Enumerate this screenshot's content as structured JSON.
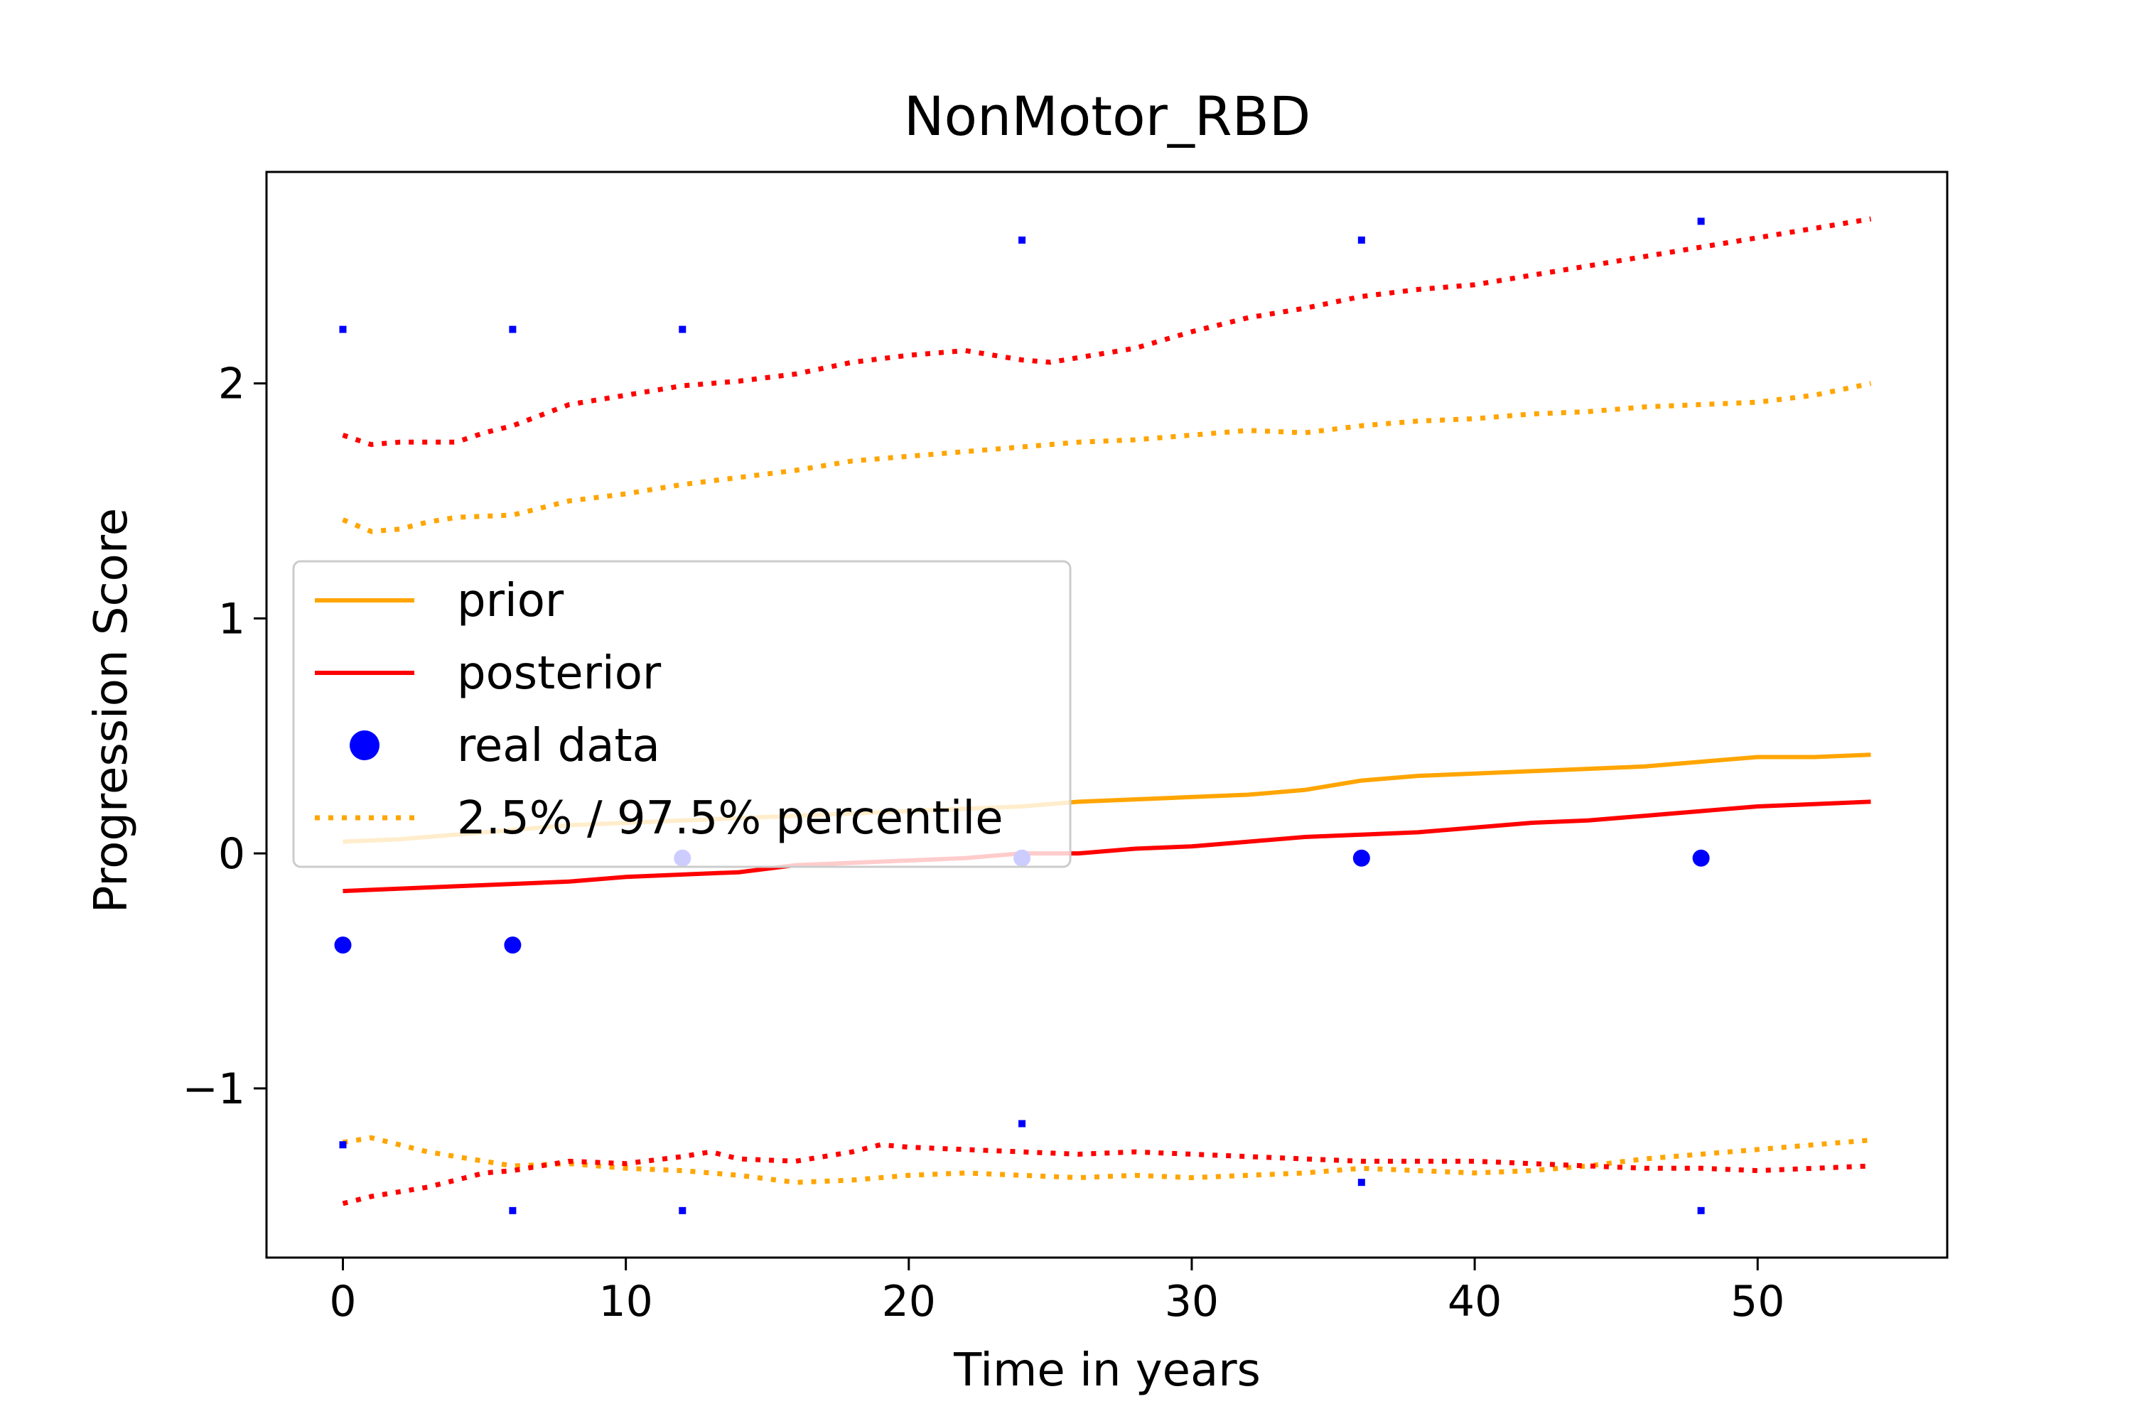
{
  "chart_data": {
    "type": "line",
    "title": "NonMotor_RBD",
    "xlabel": "Time in years",
    "ylabel": "Progression Score",
    "xlim": [
      -2.7,
      56.7
    ],
    "ylim": [
      -1.72,
      2.9
    ],
    "xticks": [
      0,
      10,
      20,
      30,
      40,
      50
    ],
    "yticks": [
      -1,
      0,
      1,
      2
    ],
    "xtick_labels": [
      "0",
      "10",
      "20",
      "30",
      "40",
      "50"
    ],
    "ytick_labels": [
      "−1",
      "0",
      "1",
      "2"
    ],
    "grid": false,
    "legend_placement": "center-left",
    "legend": [
      {
        "label": "prior",
        "kind": "line",
        "color": "#ffa500"
      },
      {
        "label": "posterior",
        "kind": "line",
        "color": "#ff0000"
      },
      {
        "label": "real data",
        "kind": "marker",
        "color": "#0000ff"
      },
      {
        "label": "2.5% / 97.5% percentile",
        "kind": "dotted",
        "color": "#ffa500"
      }
    ],
    "series": [
      {
        "name": "prior",
        "role": "mean",
        "color": "#ffa500",
        "style": "solid",
        "x": [
          0,
          2,
          4,
          6,
          8,
          10,
          12,
          14,
          16,
          18,
          20,
          22,
          24,
          26,
          28,
          30,
          32,
          34,
          36,
          38,
          40,
          42,
          44,
          46,
          48,
          50,
          52,
          54
        ],
        "y": [
          0.05,
          0.06,
          0.08,
          0.1,
          0.12,
          0.13,
          0.14,
          0.15,
          0.16,
          0.17,
          0.18,
          0.19,
          0.2,
          0.22,
          0.23,
          0.24,
          0.25,
          0.27,
          0.31,
          0.33,
          0.34,
          0.35,
          0.36,
          0.37,
          0.39,
          0.41,
          0.41,
          0.42
        ]
      },
      {
        "name": "posterior",
        "role": "mean",
        "color": "#ff0000",
        "style": "solid",
        "x": [
          0,
          2,
          4,
          6,
          8,
          10,
          12,
          14,
          16,
          18,
          20,
          22,
          24,
          26,
          28,
          30,
          32,
          34,
          36,
          38,
          40,
          42,
          44,
          46,
          48,
          50,
          52,
          54
        ],
        "y": [
          -0.16,
          -0.15,
          -0.14,
          -0.13,
          -0.12,
          -0.1,
          -0.09,
          -0.08,
          -0.05,
          -0.04,
          -0.03,
          -0.02,
          0.0,
          0.0,
          0.02,
          0.03,
          0.05,
          0.07,
          0.08,
          0.09,
          0.11,
          0.13,
          0.14,
          0.16,
          0.18,
          0.2,
          0.21,
          0.22
        ]
      },
      {
        "name": "prior 97.5%",
        "role": "upper",
        "color": "#ffa500",
        "style": "dotted",
        "x": [
          0,
          1,
          2,
          3,
          4,
          6,
          8,
          10,
          12,
          14,
          16,
          18,
          20,
          22,
          24,
          26,
          28,
          30,
          32,
          34,
          36,
          38,
          40,
          42,
          44,
          46,
          48,
          50,
          52,
          54
        ],
        "y": [
          1.42,
          1.37,
          1.38,
          1.41,
          1.43,
          1.44,
          1.5,
          1.53,
          1.57,
          1.6,
          1.63,
          1.67,
          1.69,
          1.71,
          1.73,
          1.75,
          1.76,
          1.78,
          1.8,
          1.79,
          1.82,
          1.84,
          1.85,
          1.87,
          1.88,
          1.9,
          1.91,
          1.92,
          1.95,
          2.0
        ]
      },
      {
        "name": "posterior 97.5%",
        "role": "upper",
        "color": "#ff0000",
        "style": "dotted",
        "x": [
          0,
          1,
          2,
          3,
          4,
          5,
          6,
          8,
          10,
          12,
          14,
          16,
          18,
          20,
          22,
          24,
          25,
          26,
          28,
          30,
          32,
          34,
          36,
          38,
          40,
          42,
          44,
          46,
          48,
          50,
          52,
          54
        ],
        "y": [
          1.78,
          1.74,
          1.75,
          1.75,
          1.75,
          1.79,
          1.82,
          1.91,
          1.95,
          1.99,
          2.01,
          2.04,
          2.09,
          2.12,
          2.14,
          2.1,
          2.09,
          2.11,
          2.15,
          2.22,
          2.28,
          2.32,
          2.37,
          2.4,
          2.42,
          2.46,
          2.5,
          2.54,
          2.58,
          2.62,
          2.66,
          2.7
        ]
      },
      {
        "name": "prior 2.5%",
        "role": "lower",
        "color": "#ffa500",
        "style": "dotted",
        "x": [
          0,
          1,
          2,
          3,
          4,
          6,
          8,
          10,
          12,
          14,
          16,
          18,
          20,
          22,
          24,
          26,
          28,
          30,
          32,
          34,
          36,
          38,
          40,
          42,
          44,
          46,
          48,
          50,
          52,
          54
        ],
        "y": [
          -1.23,
          -1.21,
          -1.24,
          -1.27,
          -1.29,
          -1.33,
          -1.32,
          -1.34,
          -1.35,
          -1.37,
          -1.4,
          -1.39,
          -1.37,
          -1.36,
          -1.37,
          -1.38,
          -1.37,
          -1.38,
          -1.37,
          -1.36,
          -1.34,
          -1.35,
          -1.36,
          -1.35,
          -1.33,
          -1.3,
          -1.28,
          -1.26,
          -1.24,
          -1.22
        ]
      },
      {
        "name": "posterior 2.5%",
        "role": "lower",
        "color": "#ff0000",
        "style": "dotted",
        "x": [
          0,
          1,
          2,
          3,
          4,
          5,
          6,
          8,
          10,
          12,
          13,
          14,
          16,
          18,
          19,
          20,
          22,
          24,
          26,
          28,
          30,
          32,
          34,
          36,
          38,
          40,
          42,
          44,
          46,
          48,
          50,
          52,
          54
        ],
        "y": [
          -1.49,
          -1.46,
          -1.44,
          -1.42,
          -1.39,
          -1.36,
          -1.35,
          -1.31,
          -1.32,
          -1.29,
          -1.27,
          -1.3,
          -1.31,
          -1.27,
          -1.24,
          -1.25,
          -1.26,
          -1.27,
          -1.28,
          -1.27,
          -1.28,
          -1.29,
          -1.3,
          -1.31,
          -1.31,
          -1.31,
          -1.32,
          -1.33,
          -1.34,
          -1.34,
          -1.35,
          -1.34,
          -1.33
        ]
      }
    ],
    "real_data": {
      "name": "real data",
      "color": "#0000ff",
      "x": [
        0,
        6,
        12,
        24,
        36,
        48
      ],
      "y": [
        -0.39,
        -0.39,
        -0.02,
        -0.02,
        -0.02,
        -0.02
      ],
      "upper": [
        2.23,
        2.23,
        2.23,
        2.61,
        2.61,
        2.69
      ],
      "lower": [
        -1.24,
        -1.52,
        -1.52,
        -1.15,
        -1.4,
        -1.52
      ]
    }
  }
}
